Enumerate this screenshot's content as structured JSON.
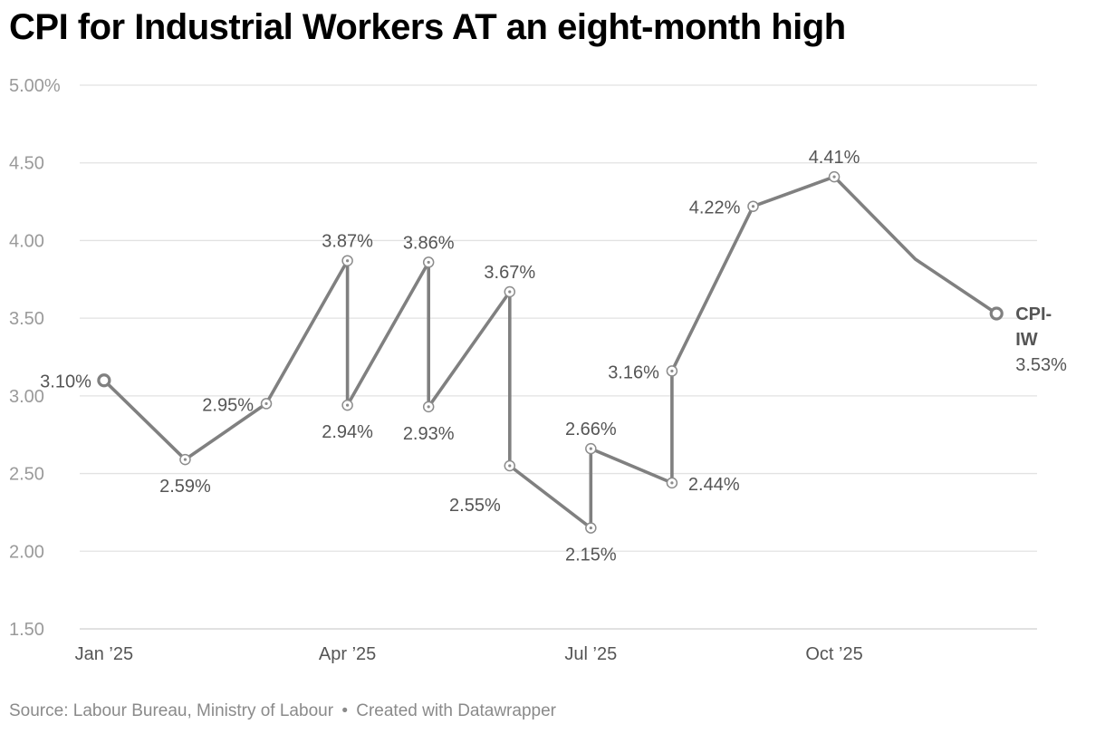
{
  "title": "CPI for Industrial Workers AT an eight-month high",
  "footer": {
    "source": "Source: Labour Bureau, Ministry of Labour",
    "separator": "•",
    "credit": "Created with Datawrapper"
  },
  "chart_data": {
    "type": "line",
    "title": "CPI for Industrial Workers AT an eight-month high",
    "xlabel": "",
    "ylabel": "",
    "ylim": [
      1.5,
      5.0
    ],
    "y_ticks": [
      5.0,
      4.5,
      4.0,
      3.5,
      3.0,
      2.5,
      2.0,
      1.5
    ],
    "y_tick_labels": [
      "5.00%",
      "4.50",
      "4.00",
      "3.50",
      "3.00",
      "2.50",
      "2.00",
      "1.50"
    ],
    "x_range": [
      -0.3,
      11.5
    ],
    "x_ticks": [
      {
        "x": 0,
        "label": "Jan ’25"
      },
      {
        "x": 3,
        "label": "Apr ’25"
      },
      {
        "x": 6,
        "label": "Jul ’25"
      },
      {
        "x": 9,
        "label": "Oct ’25"
      }
    ],
    "grid": true,
    "line_color": "#808080",
    "series": [
      {
        "name": "CPI-IW",
        "name_lines": [
          "CPI-",
          "IW"
        ],
        "end_value_label": "3.53%",
        "points": [
          {
            "x": 0,
            "y": 3.1,
            "label": "3.10%",
            "pos": "left",
            "endpoint": true
          },
          {
            "x": 1,
            "y": 2.59,
            "label": "2.59%",
            "pos": "below"
          },
          {
            "x": 2,
            "y": 2.95,
            "label": "2.95%",
            "pos": "left"
          },
          {
            "x": 3,
            "y": 3.87,
            "label": "3.87%",
            "pos": "above"
          },
          {
            "x": 3,
            "y": 2.94,
            "label": "2.94%",
            "pos": "below"
          },
          {
            "x": 4,
            "y": 3.86,
            "label": "3.86%",
            "pos": "above"
          },
          {
            "x": 4,
            "y": 2.93,
            "label": "2.93%",
            "pos": "below"
          },
          {
            "x": 5,
            "y": 3.67,
            "label": "3.67%",
            "pos": "above"
          },
          {
            "x": 5,
            "y": 2.55,
            "label": "2.55%",
            "pos": "below-left"
          },
          {
            "x": 6,
            "y": 2.15,
            "label": "2.15%",
            "pos": "below"
          },
          {
            "x": 6,
            "y": 2.66,
            "label": "2.66%",
            "pos": "above"
          },
          {
            "x": 7,
            "y": 2.44,
            "label": "2.44%",
            "pos": "right"
          },
          {
            "x": 7,
            "y": 3.16,
            "label": "3.16%",
            "pos": "left"
          },
          {
            "x": 8,
            "y": 4.22,
            "label": "4.22%",
            "pos": "left"
          },
          {
            "x": 9,
            "y": 4.41,
            "label": "4.41%",
            "pos": "above"
          },
          {
            "x": 10,
            "y": 3.88,
            "label": "",
            "pos": "none",
            "hidden_marker": true
          },
          {
            "x": 11,
            "y": 3.53,
            "label": "",
            "pos": "none",
            "endpoint": true
          }
        ]
      }
    ]
  }
}
